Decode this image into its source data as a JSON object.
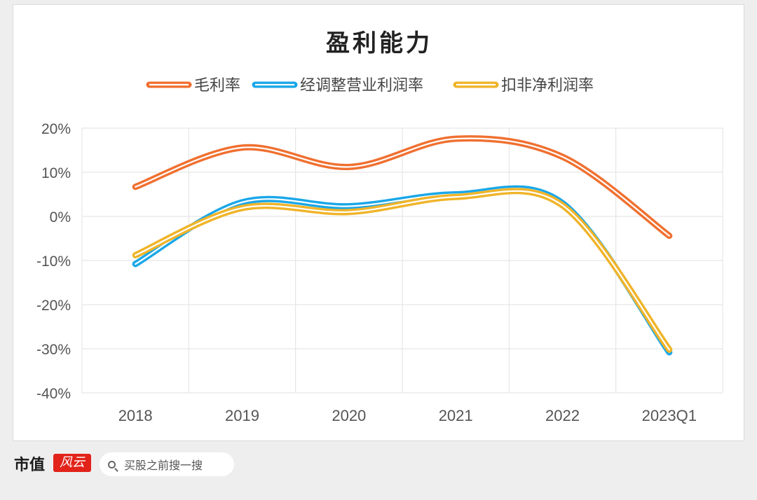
{
  "chart_data": {
    "type": "line",
    "title": "盈利能力",
    "categories": [
      "2018",
      "2019",
      "2020",
      "2021",
      "2022",
      "2023Q1"
    ],
    "ylim": [
      -40,
      20
    ],
    "yticks": [
      "20%",
      "10%",
      "0%",
      "-10%",
      "-20%",
      "-30%",
      "-40%"
    ],
    "ytick_values": [
      20,
      10,
      0,
      -10,
      -20,
      -30,
      -40
    ],
    "grid": true,
    "legend_position": "top",
    "series": [
      {
        "name": "毛利率",
        "color": "#f07030",
        "values": [
          6.7,
          15.6,
          11.2,
          17.6,
          13.5,
          -4.4
        ]
      },
      {
        "name": "经调整营业利润率",
        "color": "#1aa7e8",
        "values": [
          -10.8,
          3.2,
          2.3,
          5.0,
          3.0,
          -30.8
        ]
      },
      {
        "name": "扣非净利润率",
        "color": "#f0b429",
        "values": [
          -8.8,
          1.9,
          1.0,
          4.4,
          2.5,
          -30.2
        ]
      }
    ]
  },
  "brand": {
    "name": "市值",
    "stamp": "风云",
    "search_placeholder": "买股之前搜一搜"
  }
}
